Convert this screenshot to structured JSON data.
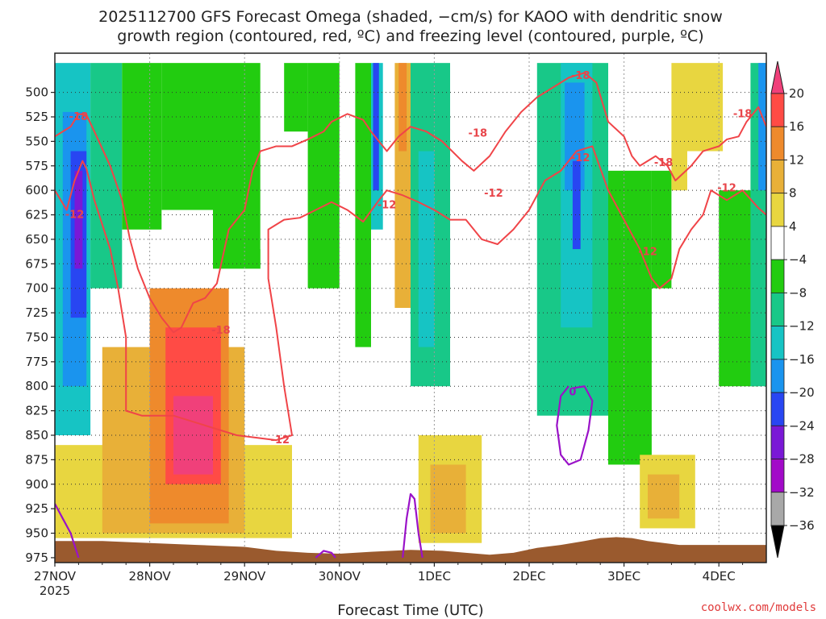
{
  "chart_data": {
    "type": "heatmap",
    "title_lines": [
      "2025112700 GFS Forecast Omega (shaded, −cm/s) for KAOO with dendritic snow",
      "growth region (contoured, red, ºC) and freezing level (contoured, purple, ºC)"
    ],
    "xlabel": "Forecast Time (UTC)",
    "credit": "coolwx.com/models",
    "x_ticks": [
      {
        "label": "27NOV",
        "hour": 0
      },
      {
        "label": "28NOV",
        "hour": 24
      },
      {
        "label": "29NOV",
        "hour": 48
      },
      {
        "label": "30NOV",
        "hour": 72
      },
      {
        "label": "1DEC",
        "hour": 96
      },
      {
        "label": "2DEC",
        "hour": 120
      },
      {
        "label": "3DEC",
        "hour": 144
      },
      {
        "label": "4DEC",
        "hour": 168
      }
    ],
    "x_year_label": "2025",
    "x_range_hours": [
      0,
      180
    ],
    "y_range_hpa": [
      460,
      980
    ],
    "y_ticks": [
      500,
      525,
      550,
      575,
      600,
      625,
      650,
      675,
      700,
      725,
      750,
      775,
      800,
      825,
      850,
      875,
      900,
      925,
      950,
      975
    ],
    "colorbar": {
      "labels": [
        "20",
        "16",
        "12",
        "8",
        "4",
        "−4",
        "−8",
        "−12",
        "−16",
        "−20",
        "−24",
        "−28",
        "−32",
        "−36"
      ],
      "colors": [
        "#f0407a",
        "#ff4b45",
        "#ee8a2c",
        "#e8b038",
        "#e8d640",
        "#ffffff",
        "#22cc10",
        "#18c888",
        "#16c4c4",
        "#1a94ee",
        "#2846f2",
        "#7a18d6",
        "#a20ac8",
        "#a8a8a8"
      ]
    },
    "terrain_color": "#9a5a2e",
    "contour_color_red": "#f04448",
    "contour_color_purple": "#9a12c8",
    "contour_labels": [
      {
        "text": "-18",
        "hour": 6,
        "p": 525
      },
      {
        "text": "-12",
        "hour": 5,
        "p": 625
      },
      {
        "text": "-18",
        "hour": 42,
        "p": 743
      },
      {
        "text": "-12",
        "hour": 57,
        "p": 855
      },
      {
        "text": "-12",
        "hour": 84,
        "p": 615
      },
      {
        "text": "-18",
        "hour": 107,
        "p": 542
      },
      {
        "text": "-12",
        "hour": 111,
        "p": 603
      },
      {
        "text": "-18",
        "hour": 133,
        "p": 483
      },
      {
        "text": "-12",
        "hour": 133,
        "p": 567
      },
      {
        "text": "-18",
        "hour": 154,
        "p": 572
      },
      {
        "text": "-12",
        "hour": 150,
        "p": 663
      },
      {
        "text": "-18",
        "hour": 174,
        "p": 522
      },
      {
        "text": "-12",
        "hour": 170,
        "p": 598
      }
    ],
    "freezing_labels": [
      {
        "text": "0",
        "hour": 131,
        "p": 806
      }
    ],
    "omega_regions": [
      {
        "h0": 0,
        "h1": 9,
        "p0": 470,
        "p1": 850,
        "v": -16
      },
      {
        "h0": 2,
        "h1": 8,
        "p0": 520,
        "p1": 800,
        "v": -20
      },
      {
        "h0": 4,
        "h1": 8,
        "p0": 560,
        "p1": 730,
        "v": -24
      },
      {
        "h0": 5,
        "h1": 7,
        "p0": 580,
        "p1": 680,
        "v": -28
      },
      {
        "h0": 9,
        "h1": 17,
        "p0": 470,
        "p1": 700,
        "v": -12
      },
      {
        "h0": 17,
        "h1": 27,
        "p0": 470,
        "p1": 640,
        "v": -8
      },
      {
        "h0": 27,
        "h1": 40,
        "p0": 470,
        "p1": 620,
        "v": -8
      },
      {
        "h0": 40,
        "h1": 52,
        "p0": 470,
        "p1": 680,
        "v": -8
      },
      {
        "h0": 52,
        "h1": 58,
        "p0": 470,
        "p1": 660,
        "v": -4
      },
      {
        "h0": 58,
        "h1": 64,
        "p0": 470,
        "p1": 540,
        "v": -8
      },
      {
        "h0": 64,
        "h1": 72,
        "p0": 470,
        "p1": 700,
        "v": -8
      },
      {
        "h0": 76,
        "h1": 80,
        "p0": 470,
        "p1": 760,
        "v": -8
      },
      {
        "h0": 80,
        "h1": 83,
        "p0": 470,
        "p1": 640,
        "v": -16
      },
      {
        "h0": 80.5,
        "h1": 82,
        "p0": 470,
        "p1": 600,
        "v": -24
      },
      {
        "h0": 86,
        "h1": 90,
        "p0": 470,
        "p1": 720,
        "v": 8
      },
      {
        "h0": 87,
        "h1": 89,
        "p0": 470,
        "p1": 560,
        "v": 12
      },
      {
        "h0": 90,
        "h1": 100,
        "p0": 470,
        "p1": 800,
        "v": -12
      },
      {
        "h0": 92,
        "h1": 96,
        "p0": 560,
        "p1": 760,
        "v": -16
      },
      {
        "h0": 100,
        "h1": 115,
        "p0": 470,
        "p1": 560,
        "v": -4
      },
      {
        "h0": 122,
        "h1": 140,
        "p0": 470,
        "p1": 830,
        "v": -12
      },
      {
        "h0": 128,
        "h1": 136,
        "p0": 470,
        "p1": 740,
        "v": -16
      },
      {
        "h0": 129,
        "h1": 134,
        "p0": 490,
        "p1": 600,
        "v": -20
      },
      {
        "h0": 131,
        "h1": 133,
        "p0": 570,
        "p1": 660,
        "v": -24
      },
      {
        "h0": 140,
        "h1": 151,
        "p0": 580,
        "p1": 880,
        "v": -8
      },
      {
        "h0": 151,
        "h1": 156,
        "p0": 580,
        "p1": 700,
        "v": -8
      },
      {
        "h0": 156,
        "h1": 160,
        "p0": 470,
        "p1": 600,
        "v": 4
      },
      {
        "h0": 160,
        "h1": 169,
        "p0": 470,
        "p1": 560,
        "v": 4
      },
      {
        "h0": 168,
        "h1": 178,
        "p0": 600,
        "p1": 800,
        "v": -8
      },
      {
        "h0": 176,
        "h1": 180,
        "p0": 470,
        "p1": 800,
        "v": -12
      },
      {
        "h0": 178,
        "h1": 180,
        "p0": 470,
        "p1": 600,
        "v": -20
      },
      {
        "h0": 0,
        "h1": 60,
        "p0": 860,
        "p1": 955,
        "v": 4
      },
      {
        "h0": 12,
        "h1": 48,
        "p0": 760,
        "p1": 950,
        "v": 8
      },
      {
        "h0": 24,
        "h1": 44,
        "p0": 700,
        "p1": 940,
        "v": 12
      },
      {
        "h0": 28,
        "h1": 42,
        "p0": 740,
        "p1": 900,
        "v": 16
      },
      {
        "h0": 30,
        "h1": 40,
        "p0": 810,
        "p1": 890,
        "v": 20
      },
      {
        "h0": 92,
        "h1": 108,
        "p0": 850,
        "p1": 960,
        "v": 4
      },
      {
        "h0": 95,
        "h1": 104,
        "p0": 880,
        "p1": 950,
        "v": 8
      },
      {
        "h0": 148,
        "h1": 162,
        "p0": 870,
        "p1": 945,
        "v": 4
      },
      {
        "h0": 150,
        "h1": 158,
        "p0": 890,
        "p1": 935,
        "v": 8
      }
    ],
    "dgz_contours": [
      {
        "temp": -18,
        "points": [
          [
            0,
            545
          ],
          [
            4,
            535
          ],
          [
            6,
            522
          ],
          [
            8,
            523
          ],
          [
            10,
            540
          ],
          [
            14,
            575
          ],
          [
            17,
            610
          ],
          [
            19,
            650
          ],
          [
            21,
            680
          ],
          [
            24,
            710
          ],
          [
            27,
            730
          ],
          [
            30,
            745
          ],
          [
            32,
            740
          ],
          [
            35,
            715
          ],
          [
            38,
            710
          ],
          [
            41,
            695
          ],
          [
            44,
            640
          ],
          [
            48,
            620
          ],
          [
            50,
            580
          ],
          [
            52,
            560
          ],
          [
            56,
            555
          ],
          [
            60,
            555
          ],
          [
            64,
            548
          ],
          [
            68,
            540
          ],
          [
            70,
            530
          ],
          [
            74,
            522
          ],
          [
            78,
            528
          ],
          [
            80,
            540
          ],
          [
            84,
            560
          ],
          [
            87,
            545
          ],
          [
            90,
            535
          ],
          [
            94,
            540
          ],
          [
            98,
            550
          ],
          [
            103,
            570
          ],
          [
            106,
            580
          ],
          [
            110,
            565
          ],
          [
            114,
            540
          ],
          [
            118,
            520
          ],
          [
            122,
            505
          ],
          [
            126,
            495
          ],
          [
            130,
            485
          ],
          [
            134,
            480
          ],
          [
            137,
            490
          ],
          [
            140,
            530
          ],
          [
            144,
            545
          ],
          [
            146,
            565
          ],
          [
            148,
            575
          ],
          [
            152,
            565
          ],
          [
            155,
            575
          ],
          [
            157,
            590
          ],
          [
            161,
            575
          ],
          [
            164,
            560
          ],
          [
            168,
            555
          ],
          [
            170,
            548
          ],
          [
            173,
            545
          ],
          [
            175,
            530
          ],
          [
            178,
            515
          ],
          [
            180,
            535
          ]
        ]
      },
      {
        "temp": -12,
        "points": [
          [
            0,
            600
          ],
          [
            3,
            620
          ],
          [
            5,
            590
          ],
          [
            7,
            570
          ],
          [
            8,
            578
          ],
          [
            10,
            610
          ],
          [
            14,
            660
          ],
          [
            16,
            700
          ],
          [
            18,
            750
          ],
          [
            18,
            825
          ],
          [
            22,
            830
          ],
          [
            30,
            830
          ],
          [
            38,
            840
          ],
          [
            46,
            850
          ],
          [
            56,
            855
          ],
          [
            60,
            850
          ],
          [
            58,
            800
          ],
          [
            56,
            740
          ],
          [
            54,
            690
          ],
          [
            54,
            640
          ],
          [
            58,
            630
          ],
          [
            62,
            628
          ],
          [
            66,
            620
          ],
          [
            70,
            612
          ],
          [
            74,
            620
          ],
          [
            78,
            632
          ],
          [
            82,
            610
          ],
          [
            84,
            600
          ],
          [
            88,
            605
          ],
          [
            92,
            612
          ],
          [
            96,
            620
          ],
          [
            100,
            630
          ],
          [
            104,
            630
          ],
          [
            108,
            650
          ],
          [
            112,
            655
          ],
          [
            116,
            640
          ],
          [
            120,
            620
          ],
          [
            124,
            590
          ],
          [
            128,
            580
          ],
          [
            132,
            560
          ],
          [
            136,
            555
          ],
          [
            140,
            600
          ],
          [
            144,
            630
          ],
          [
            148,
            660
          ],
          [
            151,
            690
          ],
          [
            153,
            700
          ],
          [
            156,
            690
          ],
          [
            158,
            660
          ],
          [
            161,
            640
          ],
          [
            164,
            625
          ],
          [
            166,
            600
          ],
          [
            170,
            610
          ],
          [
            174,
            600
          ],
          [
            178,
            618
          ],
          [
            180,
            625
          ]
        ]
      }
    ],
    "freezing_contours": [
      {
        "temp": 0,
        "points": [
          [
            0,
            920
          ],
          [
            2,
            935
          ],
          [
            4,
            950
          ],
          [
            6,
            975
          ]
        ]
      },
      {
        "temp": 0,
        "points": [
          [
            66,
            975
          ],
          [
            68,
            968
          ],
          [
            70,
            970
          ],
          [
            71,
            975
          ]
        ]
      },
      {
        "temp": 0,
        "points": [
          [
            88,
            975
          ],
          [
            89,
            935
          ],
          [
            90,
            910
          ],
          [
            91,
            915
          ],
          [
            92,
            950
          ],
          [
            93,
            975
          ]
        ]
      },
      {
        "temp": 0,
        "points": [
          [
            130,
            800
          ],
          [
            128,
            810
          ],
          [
            127,
            840
          ],
          [
            128,
            870
          ],
          [
            130,
            880
          ],
          [
            133,
            875
          ],
          [
            135,
            845
          ],
          [
            136,
            815
          ],
          [
            134,
            800
          ],
          [
            131,
            802
          ]
        ]
      }
    ],
    "terrain_top_hpa": [
      [
        0,
        958
      ],
      [
        12,
        958
      ],
      [
        24,
        960
      ],
      [
        36,
        962
      ],
      [
        48,
        964
      ],
      [
        56,
        968
      ],
      [
        64,
        970
      ],
      [
        72,
        971
      ],
      [
        80,
        969
      ],
      [
        90,
        967
      ],
      [
        98,
        968
      ],
      [
        104,
        970
      ],
      [
        110,
        972
      ],
      [
        116,
        970
      ],
      [
        122,
        965
      ],
      [
        128,
        962
      ],
      [
        134,
        958
      ],
      [
        138,
        955
      ],
      [
        142,
        954
      ],
      [
        146,
        955
      ],
      [
        150,
        958
      ],
      [
        158,
        962
      ],
      [
        166,
        962
      ],
      [
        174,
        962
      ],
      [
        180,
        962
      ]
    ]
  }
}
